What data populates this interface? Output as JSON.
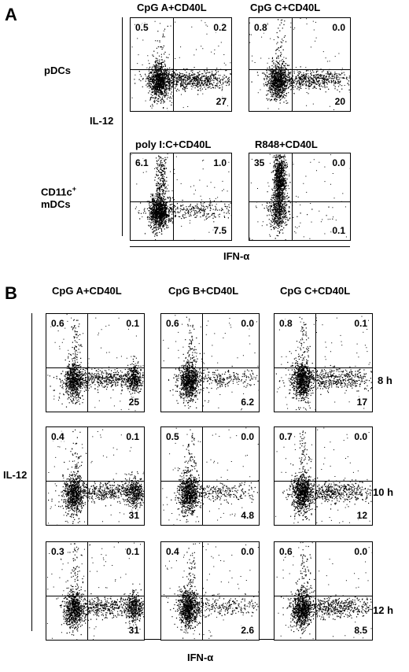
{
  "panelA": {
    "letter": "A",
    "col_titles": [
      "CpG A+CD40L",
      "CpG C+CD40L"
    ],
    "row_labels": {
      "pdc": "pDCs",
      "mdc_line1": "CD11c",
      "mdc_sup": "+",
      "mdc_line2": "mDCs"
    },
    "y_axis_label": "IL-12",
    "x_axis_label": "IFN-α",
    "plots": [
      {
        "title": "",
        "ul": "0.5",
        "ur": "0.2",
        "lr": "27"
      },
      {
        "title": "",
        "ul": "0.8",
        "ur": "0.0",
        "lr": "20"
      },
      {
        "title": "poly I:C+CD40L",
        "ul": "6.1",
        "ur": "1.0",
        "lr": "7.5"
      },
      {
        "title": "R848+CD40L",
        "ul": "35",
        "ur": "0.0",
        "lr": "0.1"
      }
    ]
  },
  "panelB": {
    "letter": "B",
    "col_titles": [
      "CpG A+CD40L",
      "CpG B+CD40L",
      "CpG C+CD40L"
    ],
    "row_times": [
      "8 h",
      "10 h",
      "12 h"
    ],
    "y_axis_label": "IL-12",
    "x_axis_label": "IFN-α",
    "plots": [
      [
        {
          "ul": "0.6",
          "ur": "0.1",
          "lr": "25"
        },
        {
          "ul": "0.6",
          "ur": "0.0",
          "lr": "6.2"
        },
        {
          "ul": "0.8",
          "ur": "0.1",
          "lr": "17"
        }
      ],
      [
        {
          "ul": "0.4",
          "ur": "0.1",
          "lr": "31"
        },
        {
          "ul": "0.5",
          "ur": "0.0",
          "lr": "4.8"
        },
        {
          "ul": "0.7",
          "ur": "0.0",
          "lr": "12"
        }
      ],
      [
        {
          "ul": "0.3",
          "ur": "0.1",
          "lr": "31"
        },
        {
          "ul": "0.4",
          "ur": "0.0",
          "lr": "2.6"
        },
        {
          "ul": "0.6",
          "ur": "0.0",
          "lr": "8.5"
        }
      ]
    ]
  }
}
